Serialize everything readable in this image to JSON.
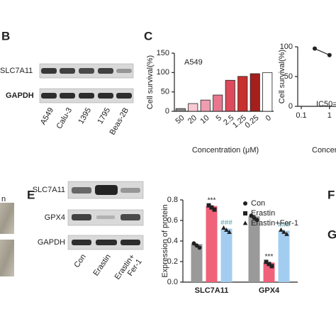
{
  "panel_labels": [
    "B",
    "C",
    "E",
    "F",
    "G"
  ],
  "cropped_text": "n",
  "blot_b": {
    "rows": [
      "SLC7A11",
      "GAPDH"
    ],
    "lanes": [
      "A549",
      "Calu-3",
      "1395",
      "1795",
      "Beas-2B"
    ]
  },
  "blot_e": {
    "rows": [
      "SLC7A11",
      "GPX4",
      "GAPDH"
    ],
    "lanes": [
      "Con",
      "Erastin",
      [
        "Erastin+",
        "Fer-1"
      ]
    ]
  },
  "chart_data": [
    {
      "type": "bar",
      "annotation": "A549",
      "y_label": "Cell survival(%)",
      "x_label": "Concentration (μM)",
      "categories": [
        "50",
        "20",
        "10",
        "5",
        "2.5",
        "1.25",
        "0.25",
        "0"
      ],
      "values": [
        7,
        20,
        29,
        42,
        80,
        90,
        97,
        100
      ],
      "colors": [
        "#8c8c8c",
        "#f6c9d3",
        "#f09db0",
        "#e8768e",
        "#dc4a5c",
        "#c8302e",
        "#a51f1c",
        "#ffffff"
      ],
      "ylim": [
        0,
        150
      ],
      "yticks": [
        0,
        50,
        100,
        150
      ]
    },
    {
      "type": "line",
      "y_label": "Cell survival(%)",
      "x_label": "Concen",
      "annotation": "IC50=",
      "x": [
        0.3,
        1
      ],
      "values": [
        97,
        86
      ],
      "color": "#222222",
      "log_x": true,
      "xlim": [
        0.1,
        1.7
      ],
      "xticks": [
        0.1,
        1
      ],
      "ylim": [
        0,
        100
      ],
      "yticks": [
        0,
        50,
        100
      ]
    },
    {
      "type": "grouped_bar",
      "y_label": "Expression of protein",
      "categories": [
        "SLC7A11",
        "GPX4"
      ],
      "series": [
        {
          "name": "Con",
          "color": "#9a9a9a",
          "marker": "circle",
          "values": [
            0.37,
            0.64
          ]
        },
        {
          "name": "Erastin",
          "color": "#f0617a",
          "marker": "square",
          "values": [
            0.74,
            0.19
          ],
          "sig_labels": [
            "***",
            "***"
          ],
          "sig_color": "#222222"
        },
        {
          "name": "Erastin+Fer-1",
          "color": "#a3cdf0",
          "marker": "triangle",
          "values": [
            0.52,
            0.5
          ],
          "sig_labels": [
            "###",
            "###"
          ],
          "sig_color": "#5aa0a8"
        }
      ],
      "ylim": [
        0,
        0.8
      ],
      "yticks": [
        {
          "value": 0,
          "label": "0.0"
        },
        {
          "value": 0.2,
          "label": "0.2"
        },
        {
          "value": 0.4,
          "label": "0.4"
        },
        {
          "value": 0.6,
          "label": "0.6"
        },
        {
          "value": 0.8,
          "label": "0.8"
        }
      ]
    }
  ]
}
